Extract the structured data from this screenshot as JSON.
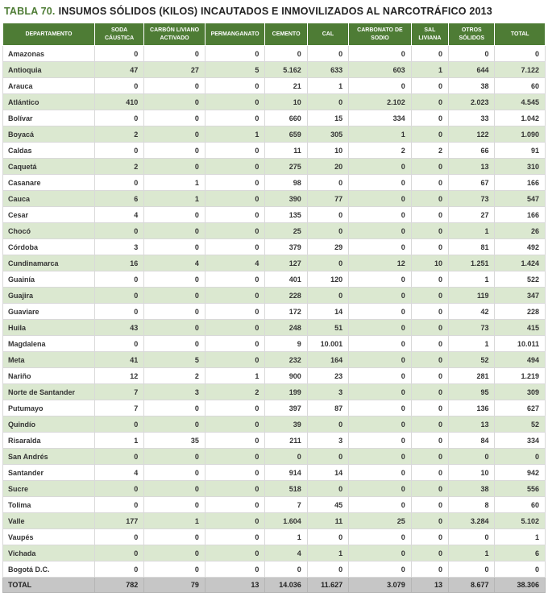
{
  "title": {
    "label": "TABLA 70.",
    "text": "INSUMOS SÓLIDOS (KILOS) INCAUTADOS E INMOVILIZADOS AL NARCOTRÁFICO 2013"
  },
  "colors": {
    "header_green": "#4e7c35",
    "row_alt_green": "#dbe8d0",
    "total_row_gray": "#c6c6c6",
    "title_accent_green": "#4e7c35",
    "body_text": "#333333"
  },
  "chart_data": {
    "type": "table",
    "title": "TABLA 70. INSUMOS SÓLIDOS (KILOS) INCAUTADOS E INMOVILIZADOS AL NARCOTRÁFICO 2013",
    "columns": [
      "DEPARTAMENTO",
      "SODA CÁUSTICA",
      "CARBÓN LIVIANO ACTIVADO",
      "PERMANGANATO",
      "CEMENTO",
      "CAL",
      "CARBONATO DE SODIO",
      "SAL LIVIANA",
      "OTROS SÓLIDOS",
      "TOTAL"
    ],
    "rows": [
      [
        "Amazonas",
        "0",
        "0",
        "0",
        "0",
        "0",
        "0",
        "0",
        "0",
        "0"
      ],
      [
        "Antioquia",
        "47",
        "27",
        "5",
        "5.162",
        "633",
        "603",
        "1",
        "644",
        "7.122"
      ],
      [
        "Arauca",
        "0",
        "0",
        "0",
        "21",
        "1",
        "0",
        "0",
        "38",
        "60"
      ],
      [
        "Atlántico",
        "410",
        "0",
        "0",
        "10",
        "0",
        "2.102",
        "0",
        "2.023",
        "4.545"
      ],
      [
        "Bolívar",
        "0",
        "0",
        "0",
        "660",
        "15",
        "334",
        "0",
        "33",
        "1.042"
      ],
      [
        "Boyacá",
        "2",
        "0",
        "1",
        "659",
        "305",
        "1",
        "0",
        "122",
        "1.090"
      ],
      [
        "Caldas",
        "0",
        "0",
        "0",
        "11",
        "10",
        "2",
        "2",
        "66",
        "91"
      ],
      [
        "Caquetá",
        "2",
        "0",
        "0",
        "275",
        "20",
        "0",
        "0",
        "13",
        "310"
      ],
      [
        "Casanare",
        "0",
        "1",
        "0",
        "98",
        "0",
        "0",
        "0",
        "67",
        "166"
      ],
      [
        "Cauca",
        "6",
        "1",
        "0",
        "390",
        "77",
        "0",
        "0",
        "73",
        "547"
      ],
      [
        "Cesar",
        "4",
        "0",
        "0",
        "135",
        "0",
        "0",
        "0",
        "27",
        "166"
      ],
      [
        "Chocó",
        "0",
        "0",
        "0",
        "25",
        "0",
        "0",
        "0",
        "1",
        "26"
      ],
      [
        "Córdoba",
        "3",
        "0",
        "0",
        "379",
        "29",
        "0",
        "0",
        "81",
        "492"
      ],
      [
        "Cundinamarca",
        "16",
        "4",
        "4",
        "127",
        "0",
        "12",
        "10",
        "1.251",
        "1.424"
      ],
      [
        "Guainía",
        "0",
        "0",
        "0",
        "401",
        "120",
        "0",
        "0",
        "1",
        "522"
      ],
      [
        "Guajira",
        "0",
        "0",
        "0",
        "228",
        "0",
        "0",
        "0",
        "119",
        "347"
      ],
      [
        "Guaviare",
        "0",
        "0",
        "0",
        "172",
        "14",
        "0",
        "0",
        "42",
        "228"
      ],
      [
        "Huila",
        "43",
        "0",
        "0",
        "248",
        "51",
        "0",
        "0",
        "73",
        "415"
      ],
      [
        "Magdalena",
        "0",
        "0",
        "0",
        "9",
        "10.001",
        "0",
        "0",
        "1",
        "10.011"
      ],
      [
        "Meta",
        "41",
        "5",
        "0",
        "232",
        "164",
        "0",
        "0",
        "52",
        "494"
      ],
      [
        "Nariño",
        "12",
        "2",
        "1",
        "900",
        "23",
        "0",
        "0",
        "281",
        "1.219"
      ],
      [
        "Norte de Santander",
        "7",
        "3",
        "2",
        "199",
        "3",
        "0",
        "0",
        "95",
        "309"
      ],
      [
        "Putumayo",
        "7",
        "0",
        "0",
        "397",
        "87",
        "0",
        "0",
        "136",
        "627"
      ],
      [
        "Quindío",
        "0",
        "0",
        "0",
        "39",
        "0",
        "0",
        "0",
        "13",
        "52"
      ],
      [
        "Risaralda",
        "1",
        "35",
        "0",
        "211",
        "3",
        "0",
        "0",
        "84",
        "334"
      ],
      [
        "San Andrés",
        "0",
        "0",
        "0",
        "0",
        "0",
        "0",
        "0",
        "0",
        "0"
      ],
      [
        "Santander",
        "4",
        "0",
        "0",
        "914",
        "14",
        "0",
        "0",
        "10",
        "942"
      ],
      [
        "Sucre",
        "0",
        "0",
        "0",
        "518",
        "0",
        "0",
        "0",
        "38",
        "556"
      ],
      [
        "Tolima",
        "0",
        "0",
        "0",
        "7",
        "45",
        "0",
        "0",
        "8",
        "60"
      ],
      [
        "Valle",
        "177",
        "1",
        "0",
        "1.604",
        "11",
        "25",
        "0",
        "3.284",
        "5.102"
      ],
      [
        "Vaupés",
        "0",
        "0",
        "0",
        "1",
        "0",
        "0",
        "0",
        "0",
        "1"
      ],
      [
        "Vichada",
        "0",
        "0",
        "0",
        "4",
        "1",
        "0",
        "0",
        "1",
        "6"
      ],
      [
        "Bogotá D.C.",
        "0",
        "0",
        "0",
        "0",
        "0",
        "0",
        "0",
        "0",
        "0"
      ]
    ],
    "total_row": [
      "TOTAL",
      "782",
      "79",
      "13",
      "14.036",
      "11.627",
      "3.079",
      "13",
      "8.677",
      "38.306"
    ]
  }
}
